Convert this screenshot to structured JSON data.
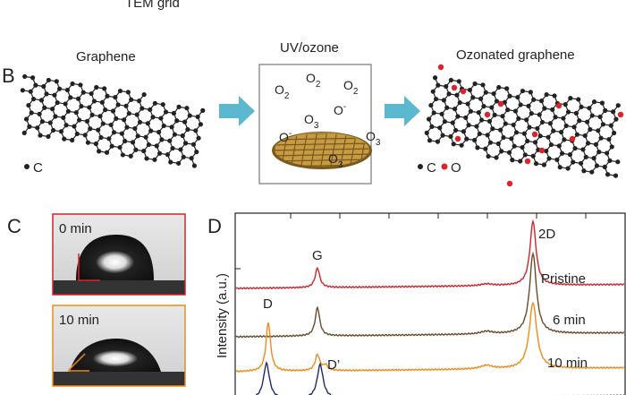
{
  "header": {
    "caption": "TEM grid"
  },
  "panel_b": {
    "label": "B",
    "left_title": "Graphene",
    "middle_title": "UV/ozone",
    "right_title": "Ozonated graphene",
    "left_legend": "C",
    "right_legend_c": "C",
    "right_legend_o": "O",
    "molecules": [
      {
        "base": "O",
        "sub": "2"
      },
      {
        "base": "O",
        "sub": "2"
      },
      {
        "base": "O",
        "sub": "2"
      },
      {
        "base": "O",
        "sup": "-"
      },
      {
        "base": "O",
        "sub": "3"
      },
      {
        "base": "O",
        "sup": "-"
      },
      {
        "base": "O",
        "sub": "3"
      },
      {
        "base": "O",
        "sub": "3"
      }
    ]
  },
  "panel_c": {
    "label": "C",
    "top_time": "0 min",
    "bottom_time": "10 min"
  },
  "panel_d": {
    "label": "D",
    "y_axis": "Intensity (a.u.)",
    "peak_2d": "2D",
    "peak_g": "G",
    "peak_d": "D",
    "peak_d_prime": "D’",
    "series_pristine": "Pristine",
    "series_6": "6 min",
    "series_10": "10 min"
  }
}
